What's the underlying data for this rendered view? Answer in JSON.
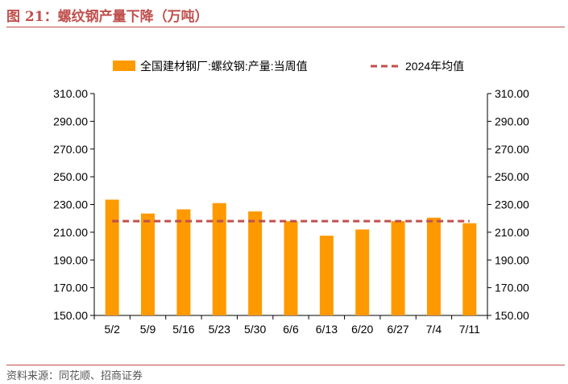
{
  "header": {
    "title": "图 21：螺纹钢产量下降（万吨）"
  },
  "footer": {
    "source": "资料来源：同花顺、招商证券"
  },
  "colors": {
    "bar": "#ff9900",
    "avg_line": "#c0504d",
    "accent": "#c0504d"
  },
  "chart_data": {
    "type": "bar",
    "categories": [
      "5/2",
      "5/9",
      "5/16",
      "5/23",
      "5/30",
      "6/6",
      "6/13",
      "6/20",
      "6/27",
      "7/4",
      "7/11"
    ],
    "series": [
      {
        "name": "全国建材钢厂:螺纹钢:产量:当周值",
        "type": "bar",
        "values": [
          233.5,
          223.5,
          226.5,
          231.0,
          225.0,
          218.0,
          207.5,
          212.0,
          218.0,
          220.5,
          216.5
        ]
      },
      {
        "name": "2024年均值",
        "type": "line",
        "style": "dashed",
        "values": [
          218,
          218,
          218,
          218,
          218,
          218,
          218,
          218,
          218,
          218,
          218
        ]
      }
    ],
    "ylim": [
      150,
      310
    ],
    "yticks": [
      "150.00",
      "170.00",
      "190.00",
      "210.00",
      "230.00",
      "250.00",
      "270.00",
      "290.00",
      "310.00"
    ],
    "ytick_values": [
      150,
      170,
      190,
      210,
      230,
      250,
      270,
      290,
      310
    ],
    "legend_position": "top",
    "grid": false
  }
}
